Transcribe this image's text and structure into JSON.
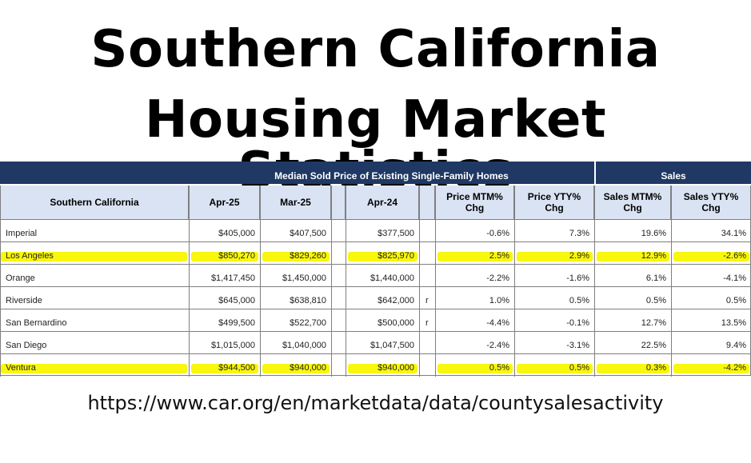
{
  "title": {
    "line1": "Southern California",
    "line2": "Housing Market Statistics"
  },
  "table": {
    "group_headers": {
      "price": "Median Sold Price of Existing Single-Family Homes",
      "sales": "Sales"
    },
    "columns": [
      "Southern California",
      "Apr-25",
      "Mar-25",
      "Apr-24",
      "Price MTM% Chg",
      "Price YTY% Chg",
      "Sales MTM% Chg",
      "Sales YTY% Chg"
    ],
    "column_lines": {
      "price_mtm": [
        "Price MTM%",
        "Chg"
      ],
      "price_yty": [
        "Price YTY%",
        "Chg"
      ],
      "sales_mtm": [
        "Sales MTM%",
        "Chg"
      ],
      "sales_yty": [
        "Sales YTY%",
        "Chg"
      ]
    },
    "rows": [
      {
        "county": "Imperial",
        "apr25": "$405,000",
        "mar25": "$407,500",
        "apr24": "$377,500",
        "flag": "",
        "price_mtm": "-0.6%",
        "price_yty": "7.3%",
        "sales_mtm": "19.6%",
        "sales_yty": "34.1%",
        "highlighted": false
      },
      {
        "county": "Los Angeles",
        "apr25": "$850,270",
        "mar25": "$829,260",
        "apr24": "$825,970",
        "flag": "",
        "price_mtm": "2.5%",
        "price_yty": "2.9%",
        "sales_mtm": "12.9%",
        "sales_yty": "-2.6%",
        "highlighted": true
      },
      {
        "county": "Orange",
        "apr25": "$1,417,450",
        "mar25": "$1,450,000",
        "apr24": "$1,440,000",
        "flag": "",
        "price_mtm": "-2.2%",
        "price_yty": "-1.6%",
        "sales_mtm": "6.1%",
        "sales_yty": "-4.1%",
        "highlighted": false
      },
      {
        "county": "Riverside",
        "apr25": "$645,000",
        "mar25": "$638,810",
        "apr24": "$642,000",
        "flag": "r",
        "price_mtm": "1.0%",
        "price_yty": "0.5%",
        "sales_mtm": "0.5%",
        "sales_yty": "0.5%",
        "highlighted": false
      },
      {
        "county": "San Bernardino",
        "apr25": "$499,500",
        "mar25": "$522,700",
        "apr24": "$500,000",
        "flag": "r",
        "price_mtm": "-4.4%",
        "price_yty": "-0.1%",
        "sales_mtm": "12.7%",
        "sales_yty": "13.5%",
        "highlighted": false
      },
      {
        "county": "San Diego",
        "apr25": "$1,015,000",
        "mar25": "$1,040,000",
        "apr24": "$1,047,500",
        "flag": "",
        "price_mtm": "-2.4%",
        "price_yty": "-3.1%",
        "sales_mtm": "22.5%",
        "sales_yty": "9.4%",
        "highlighted": false
      },
      {
        "county": "Ventura",
        "apr25": "$944,500",
        "mar25": "$940,000",
        "apr24": "$940,000",
        "flag": "",
        "price_mtm": "0.5%",
        "price_yty": "0.5%",
        "sales_mtm": "0.3%",
        "sales_yty": "-4.2%",
        "highlighted": true
      }
    ]
  },
  "source_url": "https://www.car.org/en/marketdata/data/countysalesactivity",
  "colors": {
    "header_band": "#1f3864",
    "column_header_bg": "#dae3f3",
    "highlight": "#f8f700"
  }
}
